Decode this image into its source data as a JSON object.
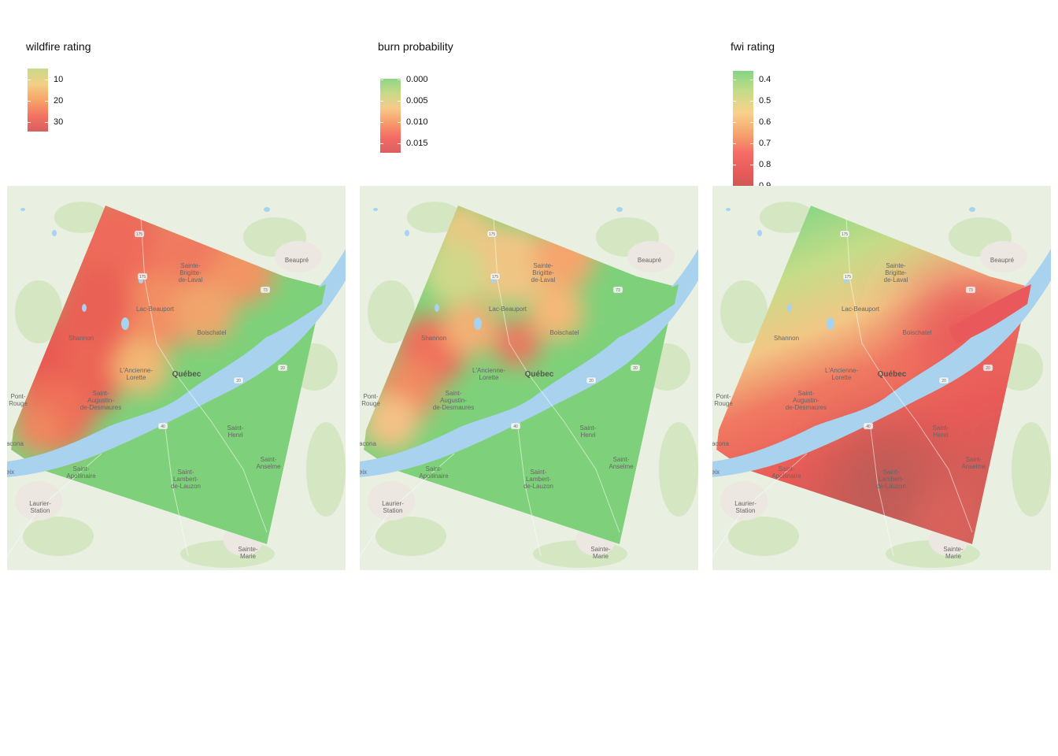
{
  "panels": [
    {
      "legend_title": "wildfire rating",
      "ticks": [
        "10",
        "20",
        "30"
      ],
      "gradient": [
        "#c9d98b",
        "#f2cf86",
        "#f6a468",
        "#f37361",
        "#d85f5f"
      ],
      "surface": "wildfire"
    },
    {
      "legend_title": "burn probability",
      "ticks": [
        "0.000",
        "0.005",
        "0.010",
        "0.015"
      ],
      "gradient": [
        "#8fd486",
        "#c9da88",
        "#f8c98a",
        "#f69a6b",
        "#f46a65",
        "#d86060"
      ],
      "surface": "burn"
    },
    {
      "legend_title": "fwi rating",
      "ticks": [
        "0.4",
        "0.5",
        "0.6",
        "0.7",
        "0.8",
        "0.9"
      ],
      "gradient": [
        "#84d585",
        "#c5dc88",
        "#f9d18c",
        "#f6a56e",
        "#f46a65",
        "#e55a58",
        "#b85a55"
      ],
      "surface": "fwi"
    }
  ],
  "basemap": {
    "colors": {
      "land": "#e9efe1",
      "forest": "#d4e6c2",
      "water": "#a9d2ee",
      "suburb": "#ece7e0"
    },
    "labels": {
      "beaupre": "Beaupré",
      "sainte_brigitte_1": "Sainte-",
      "sainte_brigitte_2": "Brigitte-",
      "sainte_brigitte_3": "de-Laval",
      "lac_beauport": "Lac-Beauport",
      "shannon": "Shannon",
      "boischatel": "Boischatel",
      "ancienne_lorette_1": "L'Ancienne-",
      "ancienne_lorette_2": "Lorette",
      "quebec": "Québec",
      "saint_augustin_1": "Saint-",
      "saint_augustin_2": "Augustin-",
      "saint_augustin_3": "de-Desmaures",
      "pont_rouge_1": "Pont-",
      "pont_rouge_2": "Rouge",
      "saint_henri_1": "Saint-",
      "saint_henri_2": "Henri",
      "saint_apollinaire_1": "Saint-",
      "saint_apollinaire_2": "Apollinaire",
      "saint_lambert_1": "Saint-",
      "saint_lambert_2": "Lambert-",
      "saint_lambert_3": "de-Lauzon",
      "saint_anselme_1": "Saint-",
      "saint_anselme_2": "Anselme",
      "laurier_station_1": "Laurier-",
      "laurier_station_2": "Station",
      "sainte_marie_1": "Sainte-",
      "sainte_marie_2": "Marie",
      "donnacona": "acona",
      "edge_label": "eix",
      "route_175": "175",
      "route_73": "73",
      "route_138": "138",
      "route_20": "20",
      "route_40": "40"
    }
  }
}
